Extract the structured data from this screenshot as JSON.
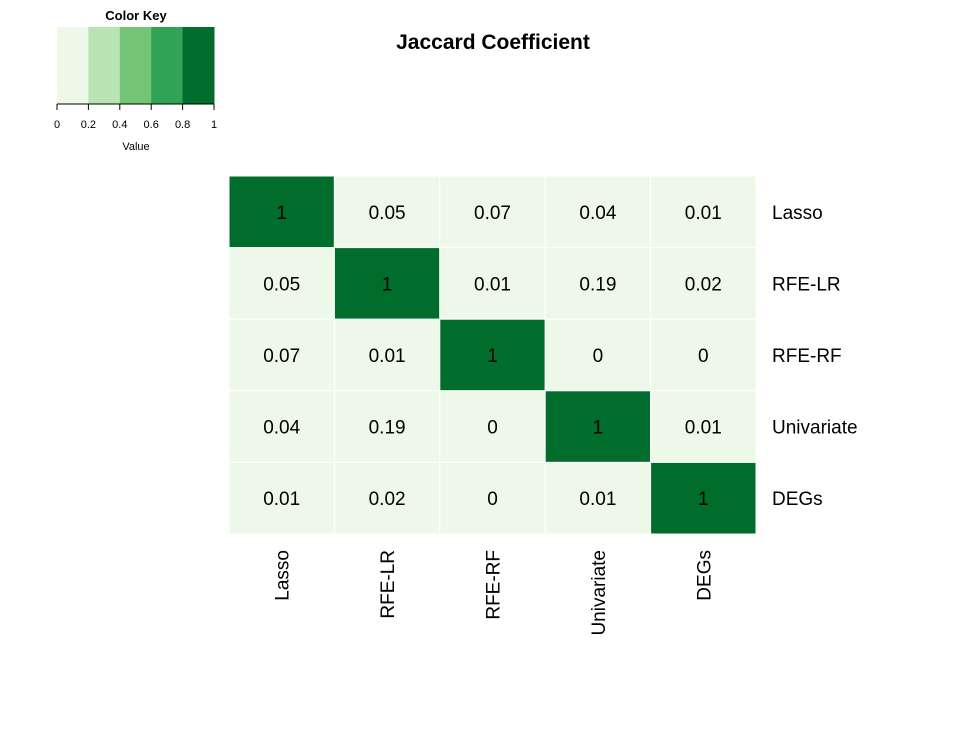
{
  "chart_data": {
    "type": "heatmap",
    "title": "Jaccard Coefficient",
    "rows": [
      "Lasso",
      "RFE-LR",
      "RFE-RF",
      "Univariate",
      "DEGs"
    ],
    "columns": [
      "Lasso",
      "RFE-LR",
      "RFE-RF",
      "Univariate",
      "DEGs"
    ],
    "values": [
      [
        1,
        0.05,
        0.07,
        0.04,
        0.01
      ],
      [
        0.05,
        1,
        0.01,
        0.19,
        0.02
      ],
      [
        0.07,
        0.01,
        1,
        0,
        0
      ],
      [
        0.04,
        0.19,
        0,
        1,
        0.01
      ],
      [
        0.01,
        0.02,
        0,
        0.01,
        1
      ]
    ],
    "cell_labels": [
      [
        "1",
        "0.05",
        "0.07",
        "0.04",
        "0.01"
      ],
      [
        "0.05",
        "1",
        "0.01",
        "0.19",
        "0.02"
      ],
      [
        "0.07",
        "0.01",
        "1",
        "0",
        "0"
      ],
      [
        "0.04",
        "0.19",
        "0",
        "1",
        "0.01"
      ],
      [
        "0.01",
        "0.02",
        "0",
        "0.01",
        "1"
      ]
    ],
    "color_key": {
      "title": "Color Key",
      "xlabel": "Value",
      "ticks": [
        "0",
        "0.2",
        "0.4",
        "0.6",
        "0.8",
        "1"
      ],
      "breaks": [
        0,
        0.2,
        0.4,
        0.6,
        0.8,
        1
      ],
      "colors": [
        "#edf8e9",
        "#bae4b3",
        "#74c476",
        "#31a354",
        "#006d2c"
      ],
      "placement": "top-left"
    }
  }
}
